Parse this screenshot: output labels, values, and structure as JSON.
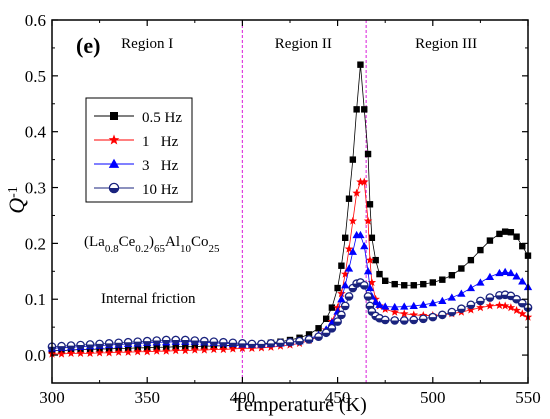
{
  "chart_data": {
    "type": "scatter",
    "panel_label": "(e)",
    "xlabel": "Temperature (K)",
    "ylabel": {
      "base": "Q",
      "sup": "-1"
    },
    "xlim": [
      300,
      550
    ],
    "ylim": [
      -0.05,
      0.6
    ],
    "xticks": [
      300,
      350,
      400,
      450,
      500,
      550
    ],
    "yticks": [
      0.0,
      0.1,
      0.2,
      0.3,
      0.4,
      0.5,
      0.6
    ],
    "xtick_labels": [
      "300",
      "350",
      "400",
      "450",
      "500",
      "550"
    ],
    "ytick_labels": [
      "0.0",
      "0.1",
      "0.2",
      "0.3",
      "0.4",
      "0.5",
      "0.6"
    ],
    "grid": false,
    "legend_position": "upper-left",
    "region_lines": [
      400,
      465
    ],
    "regions": [
      {
        "label": "Region I",
        "x": 350
      },
      {
        "label": "Region II",
        "x": 432
      },
      {
        "label": "Region III",
        "x": 507
      }
    ],
    "annotations": {
      "composition": [
        {
          "t": "(La",
          "s": "n"
        },
        {
          "t": "0.8",
          "s": "sub"
        },
        {
          "t": "Ce",
          "s": "n"
        },
        {
          "t": "0.2",
          "s": "sub"
        },
        {
          "t": ")",
          "s": "n"
        },
        {
          "t": "65",
          "s": "sub"
        },
        {
          "t": "Al",
          "s": "n"
        },
        {
          "t": "10",
          "s": "sub"
        },
        {
          "t": "Co",
          "s": "n"
        },
        {
          "t": "25",
          "s": "sub"
        }
      ],
      "internal_friction": "Internal friction"
    },
    "series": [
      {
        "name": "0.5 Hz",
        "color": "#000000",
        "marker": "square",
        "points": [
          [
            300,
            0.008
          ],
          [
            305,
            0.008
          ],
          [
            310,
            0.009
          ],
          [
            315,
            0.01
          ],
          [
            320,
            0.01
          ],
          [
            325,
            0.011
          ],
          [
            330,
            0.011
          ],
          [
            335,
            0.012
          ],
          [
            340,
            0.012
          ],
          [
            345,
            0.013
          ],
          [
            350,
            0.013
          ],
          [
            355,
            0.014
          ],
          [
            360,
            0.014
          ],
          [
            365,
            0.015
          ],
          [
            370,
            0.015
          ],
          [
            375,
            0.015
          ],
          [
            380,
            0.016
          ],
          [
            385,
            0.016
          ],
          [
            390,
            0.017
          ],
          [
            395,
            0.017
          ],
          [
            400,
            0.018
          ],
          [
            405,
            0.019
          ],
          [
            410,
            0.02
          ],
          [
            415,
            0.022
          ],
          [
            420,
            0.024
          ],
          [
            425,
            0.027
          ],
          [
            430,
            0.031
          ],
          [
            435,
            0.037
          ],
          [
            440,
            0.048
          ],
          [
            444,
            0.065
          ],
          [
            447,
            0.085
          ],
          [
            450,
            0.12
          ],
          [
            452,
            0.16
          ],
          [
            454,
            0.21
          ],
          [
            456,
            0.28
          ],
          [
            458,
            0.35
          ],
          [
            460,
            0.44
          ],
          [
            462,
            0.52
          ],
          [
            464,
            0.44
          ],
          [
            466,
            0.36
          ],
          [
            467,
            0.27
          ],
          [
            468,
            0.21
          ],
          [
            470,
            0.17
          ],
          [
            472,
            0.145
          ],
          [
            475,
            0.133
          ],
          [
            480,
            0.127
          ],
          [
            485,
            0.125
          ],
          [
            490,
            0.125
          ],
          [
            495,
            0.127
          ],
          [
            500,
            0.13
          ],
          [
            505,
            0.135
          ],
          [
            510,
            0.143
          ],
          [
            515,
            0.155
          ],
          [
            520,
            0.17
          ],
          [
            525,
            0.188
          ],
          [
            530,
            0.205
          ],
          [
            535,
            0.217
          ],
          [
            538,
            0.221
          ],
          [
            541,
            0.22
          ],
          [
            544,
            0.212
          ],
          [
            547,
            0.195
          ],
          [
            550,
            0.178
          ]
        ]
      },
      {
        "name": "1   Hz",
        "color": "#ff0000",
        "marker": "star",
        "points": [
          [
            300,
            0.002
          ],
          [
            305,
            0.002
          ],
          [
            310,
            0.003
          ],
          [
            315,
            0.003
          ],
          [
            320,
            0.003
          ],
          [
            325,
            0.004
          ],
          [
            330,
            0.004
          ],
          [
            335,
            0.005
          ],
          [
            340,
            0.005
          ],
          [
            345,
            0.006
          ],
          [
            350,
            0.006
          ],
          [
            355,
            0.007
          ],
          [
            360,
            0.007
          ],
          [
            365,
            0.008
          ],
          [
            370,
            0.008
          ],
          [
            375,
            0.009
          ],
          [
            380,
            0.009
          ],
          [
            385,
            0.01
          ],
          [
            390,
            0.01
          ],
          [
            395,
            0.011
          ],
          [
            400,
            0.012
          ],
          [
            405,
            0.012
          ],
          [
            410,
            0.013
          ],
          [
            415,
            0.014
          ],
          [
            420,
            0.016
          ],
          [
            425,
            0.018
          ],
          [
            430,
            0.021
          ],
          [
            435,
            0.026
          ],
          [
            440,
            0.033
          ],
          [
            444,
            0.045
          ],
          [
            447,
            0.06
          ],
          [
            450,
            0.085
          ],
          [
            452,
            0.11
          ],
          [
            454,
            0.145
          ],
          [
            456,
            0.19
          ],
          [
            458,
            0.24
          ],
          [
            460,
            0.29
          ],
          [
            462,
            0.31
          ],
          [
            464,
            0.31
          ],
          [
            466,
            0.24
          ],
          [
            467,
            0.17
          ],
          [
            468,
            0.13
          ],
          [
            470,
            0.1
          ],
          [
            472,
            0.088
          ],
          [
            475,
            0.082
          ],
          [
            480,
            0.077
          ],
          [
            485,
            0.074
          ],
          [
            490,
            0.072
          ],
          [
            495,
            0.071
          ],
          [
            500,
            0.071
          ],
          [
            505,
            0.072
          ],
          [
            510,
            0.074
          ],
          [
            515,
            0.077
          ],
          [
            520,
            0.081
          ],
          [
            525,
            0.085
          ],
          [
            530,
            0.088
          ],
          [
            535,
            0.089
          ],
          [
            538,
            0.088
          ],
          [
            541,
            0.085
          ],
          [
            544,
            0.08
          ],
          [
            547,
            0.074
          ],
          [
            550,
            0.068
          ]
        ]
      },
      {
        "name": "3   Hz",
        "color": "#0000ff",
        "marker": "triangle",
        "points": [
          [
            300,
            0.012
          ],
          [
            305,
            0.013
          ],
          [
            310,
            0.014
          ],
          [
            315,
            0.015
          ],
          [
            320,
            0.016
          ],
          [
            325,
            0.017
          ],
          [
            330,
            0.018
          ],
          [
            335,
            0.019
          ],
          [
            340,
            0.02
          ],
          [
            345,
            0.021
          ],
          [
            350,
            0.022
          ],
          [
            355,
            0.023
          ],
          [
            360,
            0.023
          ],
          [
            365,
            0.024
          ],
          [
            370,
            0.024
          ],
          [
            375,
            0.024
          ],
          [
            380,
            0.023
          ],
          [
            385,
            0.022
          ],
          [
            390,
            0.021
          ],
          [
            395,
            0.02
          ],
          [
            400,
            0.019
          ],
          [
            405,
            0.019
          ],
          [
            410,
            0.019
          ],
          [
            415,
            0.02
          ],
          [
            420,
            0.021
          ],
          [
            425,
            0.023
          ],
          [
            430,
            0.025
          ],
          [
            435,
            0.029
          ],
          [
            440,
            0.036
          ],
          [
            444,
            0.046
          ],
          [
            447,
            0.058
          ],
          [
            450,
            0.078
          ],
          [
            452,
            0.1
          ],
          [
            454,
            0.125
          ],
          [
            456,
            0.155
          ],
          [
            458,
            0.185
          ],
          [
            460,
            0.215
          ],
          [
            462,
            0.215
          ],
          [
            464,
            0.195
          ],
          [
            466,
            0.15
          ],
          [
            467,
            0.12
          ],
          [
            468,
            0.105
          ],
          [
            470,
            0.095
          ],
          [
            472,
            0.09
          ],
          [
            475,
            0.087
          ],
          [
            480,
            0.086
          ],
          [
            485,
            0.087
          ],
          [
            490,
            0.088
          ],
          [
            495,
            0.09
          ],
          [
            500,
            0.093
          ],
          [
            505,
            0.097
          ],
          [
            510,
            0.103
          ],
          [
            515,
            0.11
          ],
          [
            520,
            0.12
          ],
          [
            525,
            0.13
          ],
          [
            530,
            0.14
          ],
          [
            535,
            0.147
          ],
          [
            538,
            0.149
          ],
          [
            541,
            0.147
          ],
          [
            544,
            0.141
          ],
          [
            547,
            0.132
          ],
          [
            550,
            0.122
          ]
        ]
      },
      {
        "name": "10 Hz",
        "color": "#1a237e",
        "marker": "circle-half",
        "points": [
          [
            300,
            0.015
          ],
          [
            305,
            0.016
          ],
          [
            310,
            0.017
          ],
          [
            315,
            0.018
          ],
          [
            320,
            0.019
          ],
          [
            325,
            0.02
          ],
          [
            330,
            0.021
          ],
          [
            335,
            0.022
          ],
          [
            340,
            0.023
          ],
          [
            345,
            0.024
          ],
          [
            350,
            0.025
          ],
          [
            355,
            0.026
          ],
          [
            360,
            0.027
          ],
          [
            365,
            0.027
          ],
          [
            370,
            0.027
          ],
          [
            375,
            0.026
          ],
          [
            380,
            0.025
          ],
          [
            385,
            0.024
          ],
          [
            390,
            0.023
          ],
          [
            395,
            0.022
          ],
          [
            400,
            0.021
          ],
          [
            405,
            0.02
          ],
          [
            410,
            0.02
          ],
          [
            415,
            0.021
          ],
          [
            420,
            0.022
          ],
          [
            425,
            0.023
          ],
          [
            430,
            0.025
          ],
          [
            435,
            0.028
          ],
          [
            440,
            0.033
          ],
          [
            444,
            0.04
          ],
          [
            447,
            0.048
          ],
          [
            450,
            0.06
          ],
          [
            452,
            0.072
          ],
          [
            454,
            0.088
          ],
          [
            456,
            0.105
          ],
          [
            458,
            0.12
          ],
          [
            460,
            0.128
          ],
          [
            462,
            0.13
          ],
          [
            464,
            0.125
          ],
          [
            466,
            0.105
          ],
          [
            467,
            0.088
          ],
          [
            468,
            0.078
          ],
          [
            470,
            0.07
          ],
          [
            472,
            0.066
          ],
          [
            475,
            0.063
          ],
          [
            480,
            0.062
          ],
          [
            485,
            0.062
          ],
          [
            490,
            0.063
          ],
          [
            495,
            0.065
          ],
          [
            500,
            0.068
          ],
          [
            505,
            0.072
          ],
          [
            510,
            0.077
          ],
          [
            515,
            0.083
          ],
          [
            520,
            0.09
          ],
          [
            525,
            0.097
          ],
          [
            530,
            0.103
          ],
          [
            535,
            0.107
          ],
          [
            538,
            0.108
          ],
          [
            541,
            0.106
          ],
          [
            544,
            0.1
          ],
          [
            547,
            0.093
          ],
          [
            550,
            0.085
          ]
        ]
      }
    ]
  }
}
